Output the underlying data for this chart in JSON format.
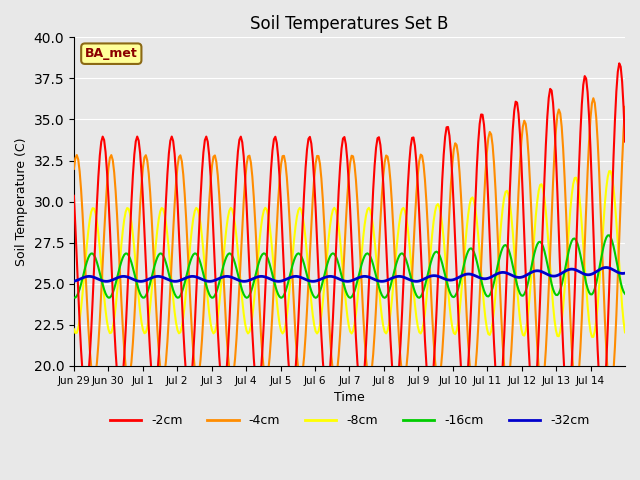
{
  "title": "Soil Temperatures Set B",
  "xlabel": "Time",
  "ylabel": "Soil Temperature (C)",
  "ylim": [
    20,
    40
  ],
  "plot_bg_color": "#e8e8e8",
  "annotation_text": "BA_met",
  "annotation_color": "#8b0000",
  "annotation_bg": "#ffff99",
  "legend_entries": [
    "-2cm",
    "-4cm",
    "-8cm",
    "-16cm",
    "-32cm"
  ],
  "line_colors": [
    "#ff0000",
    "#ff8c00",
    "#ffff00",
    "#00cc00",
    "#0000cc"
  ],
  "line_widths": [
    1.5,
    1.5,
    1.5,
    1.5,
    2.0
  ],
  "x_tick_labels": [
    "Jun 29",
    "Jun 30",
    "Jul 1",
    "Jul 2",
    "Jul 3",
    "Jul 4",
    "Jul 5",
    "Jul 6",
    "Jul 7",
    "Jul 8",
    "Jul 9",
    "Jul 10",
    "Jul 11",
    "Jul 12",
    "Jul 13",
    "Jul 14"
  ]
}
